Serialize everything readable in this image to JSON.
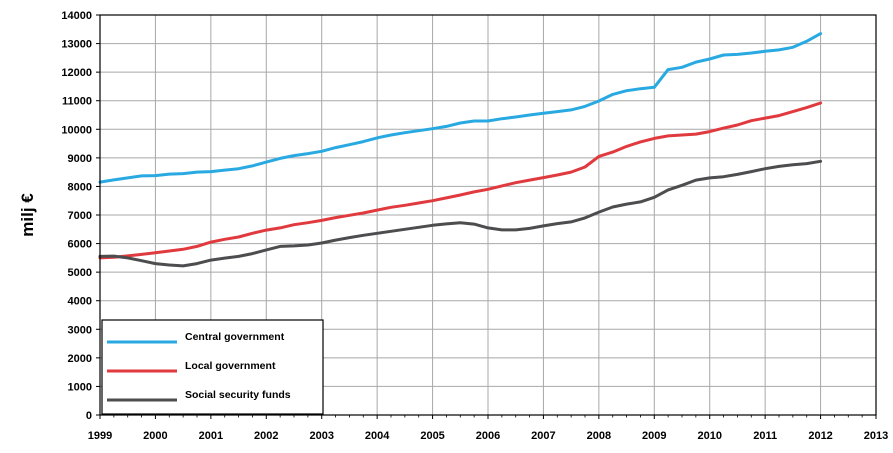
{
  "chart_data": {
    "type": "line",
    "title": "",
    "xlabel": "",
    "ylabel": "milj €",
    "xlim": [
      1999,
      2013
    ],
    "ylim": [
      0,
      14000
    ],
    "x_ticks": [
      "1999",
      "2000",
      "2001",
      "2002",
      "2003",
      "2004",
      "2005",
      "2006",
      "2007",
      "2008",
      "2009",
      "2010",
      "2011",
      "2012",
      "2013"
    ],
    "y_ticks": [
      "0",
      "1000",
      "2000",
      "3000",
      "4000",
      "5000",
      "6000",
      "7000",
      "8000",
      "9000",
      "10000",
      "11000",
      "12000",
      "13000",
      "14000"
    ],
    "grid": true,
    "legend_position": "bottom-left",
    "x": [
      1999.0,
      1999.25,
      1999.5,
      1999.75,
      2000.0,
      2000.25,
      2000.5,
      2000.75,
      2001.0,
      2001.25,
      2001.5,
      2001.75,
      2002.0,
      2002.25,
      2002.5,
      2002.75,
      2003.0,
      2003.25,
      2003.5,
      2003.75,
      2004.0,
      2004.25,
      2004.5,
      2004.75,
      2005.0,
      2005.25,
      2005.5,
      2005.75,
      2006.0,
      2006.25,
      2006.5,
      2006.75,
      2007.0,
      2007.25,
      2007.5,
      2007.75,
      2008.0,
      2008.25,
      2008.5,
      2008.75,
      2009.0,
      2009.25,
      2009.5,
      2009.75,
      2010.0,
      2010.25,
      2010.5,
      2010.75,
      2011.0,
      2011.25,
      2011.5,
      2011.75,
      2012.0
    ],
    "series": [
      {
        "name": "Central government",
        "color": "#29a9e1",
        "values": [
          8150,
          8230,
          8300,
          8370,
          8380,
          8430,
          8450,
          8500,
          8520,
          8570,
          8620,
          8720,
          8850,
          8980,
          9080,
          9150,
          9230,
          9360,
          9460,
          9570,
          9700,
          9800,
          9880,
          9950,
          10020,
          10100,
          10220,
          10290,
          10290,
          10370,
          10430,
          10500,
          10560,
          10620,
          10680,
          10800,
          10990,
          11220,
          11350,
          11420,
          11470,
          12090,
          12170,
          12350,
          12460,
          12600,
          12620,
          12670,
          12730,
          12780,
          12870,
          13080,
          13350
        ]
      },
      {
        "name": "Local government",
        "color": "#e03a3e",
        "values": [
          5500,
          5520,
          5570,
          5620,
          5680,
          5740,
          5800,
          5900,
          6050,
          6150,
          6230,
          6360,
          6470,
          6550,
          6660,
          6730,
          6810,
          6910,
          6990,
          7070,
          7170,
          7270,
          7340,
          7420,
          7500,
          7600,
          7700,
          7810,
          7900,
          8020,
          8130,
          8220,
          8310,
          8400,
          8500,
          8680,
          9050,
          9200,
          9400,
          9560,
          9680,
          9770,
          9800,
          9830,
          9920,
          10040,
          10150,
          10300,
          10390,
          10480,
          10620,
          10760,
          10920
        ]
      },
      {
        "name": "Social security funds",
        "color": "#4d4d4f",
        "values": [
          5550,
          5560,
          5500,
          5400,
          5300,
          5250,
          5220,
          5300,
          5420,
          5490,
          5550,
          5650,
          5780,
          5900,
          5920,
          5950,
          6020,
          6120,
          6210,
          6290,
          6360,
          6430,
          6500,
          6570,
          6640,
          6690,
          6730,
          6680,
          6550,
          6480,
          6480,
          6530,
          6620,
          6700,
          6760,
          6900,
          7100,
          7280,
          7380,
          7460,
          7620,
          7880,
          8040,
          8220,
          8300,
          8340,
          8420,
          8520,
          8620,
          8700,
          8760,
          8800,
          8880
        ]
      }
    ]
  }
}
